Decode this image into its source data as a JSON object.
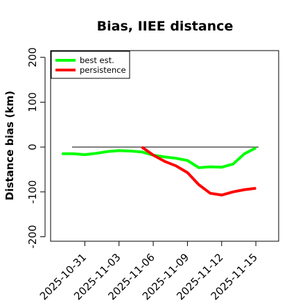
{
  "chart_data": {
    "type": "line",
    "title": "Bias, IIEE distance",
    "xlabel": "",
    "ylabel": "Distance bias (km)",
    "x_tick_labels": [
      "2025-10-31",
      "2025-11-03",
      "2025-11-06",
      "2025-11-09",
      "2025-11-12",
      "2025-11-15"
    ],
    "x_tick_dates": [
      "2025-10-31",
      "2025-11-03",
      "2025-11-06",
      "2025-11-09",
      "2025-11-12",
      "2025-11-15"
    ],
    "xlim": [
      "2025-10-28",
      "2025-11-17"
    ],
    "y_ticks": [
      -200,
      -100,
      0,
      100,
      200
    ],
    "ylim": [
      -210,
      215
    ],
    "reference_line": 0,
    "legend_position": "top-left",
    "grid": false,
    "series": [
      {
        "name": "best est.",
        "color": "#00ff00",
        "x": [
          "2025-10-29",
          "2025-10-30",
          "2025-10-31",
          "2025-11-01",
          "2025-11-02",
          "2025-11-03",
          "2025-11-04",
          "2025-11-05",
          "2025-11-06",
          "2025-11-07",
          "2025-11-08",
          "2025-11-09",
          "2025-11-10",
          "2025-11-11",
          "2025-11-12",
          "2025-11-13",
          "2025-11-14",
          "2025-11-15"
        ],
        "y": [
          -15,
          -15,
          -17,
          -14,
          -10,
          -8,
          -9,
          -11,
          -18,
          -22,
          -25,
          -30,
          -46,
          -44,
          -45,
          -38,
          -15,
          -2
        ]
      },
      {
        "name": "persistence",
        "color": "#ff0000",
        "x": [
          "2025-11-05",
          "2025-11-06",
          "2025-11-07",
          "2025-11-08",
          "2025-11-09",
          "2025-11-10",
          "2025-11-11",
          "2025-11-12",
          "2025-11-13",
          "2025-11-14",
          "2025-11-15"
        ],
        "y": [
          0,
          -18,
          -32,
          -42,
          -57,
          -84,
          -103,
          -107,
          -100,
          -95,
          -92
        ]
      }
    ]
  }
}
